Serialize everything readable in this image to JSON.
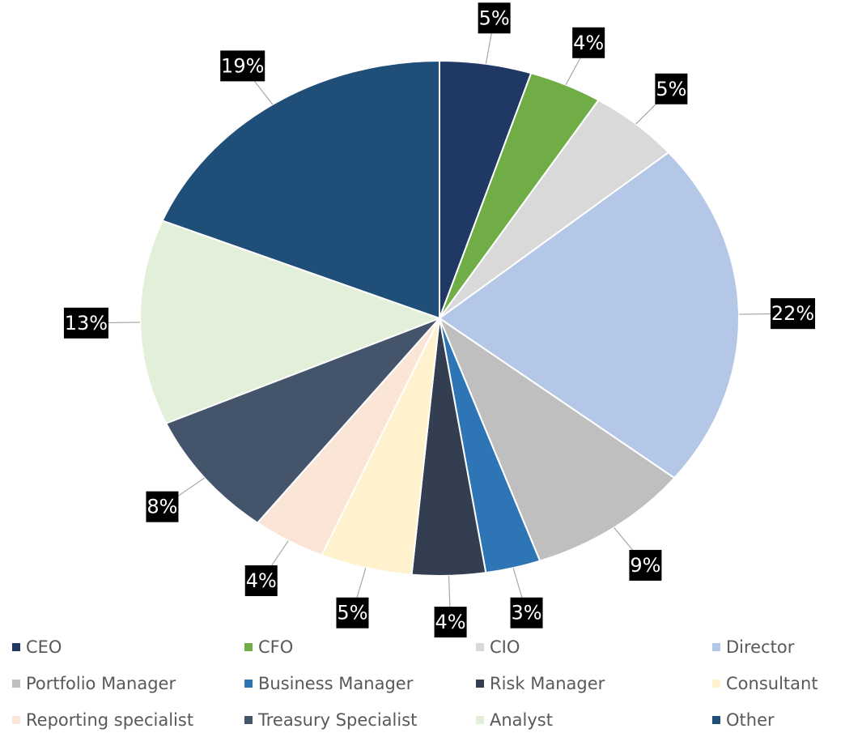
{
  "chart_data": {
    "type": "pie",
    "categories": [
      "CEO",
      "CFO",
      "CIO",
      "Director",
      "Portfolio Manager",
      "Business Manager",
      "Risk Manager",
      "Consultant",
      "Reporting specialist",
      "Treasury Specialist",
      "Analyst",
      "Other"
    ],
    "values": [
      5,
      4,
      5,
      22,
      9,
      3,
      4,
      5,
      4,
      8,
      13,
      19
    ],
    "value_labels": [
      "5%",
      "4%",
      "5%",
      "22%",
      "9%",
      "3%",
      "4%",
      "5%",
      "4%",
      "8%",
      "13%",
      "19%"
    ],
    "colors": [
      "#1f3864",
      "#70ad47",
      "#d9d9d9",
      "#b4c7e7",
      "#bfbfbf",
      "#2e75b6",
      "#333f50",
      "#fff2cc",
      "#fbe5d6",
      "#44546a",
      "#e2f0d9",
      "#1f4e79"
    ],
    "legend": "bottom"
  }
}
